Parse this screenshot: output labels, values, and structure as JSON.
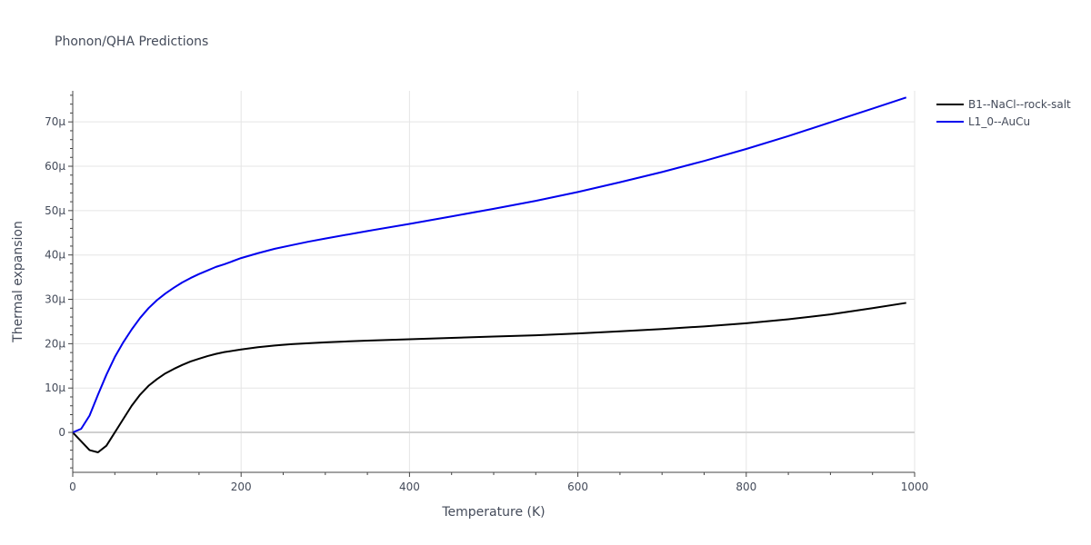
{
  "chart_data": {
    "type": "line",
    "title": "Phonon/QHA Predictions",
    "xlabel": "Temperature (K)",
    "ylabel": "Thermal expansion",
    "xlim": [
      0,
      1000
    ],
    "ylim": [
      -9,
      77
    ],
    "x_ticks": [
      0,
      200,
      400,
      600,
      800,
      1000
    ],
    "x_tick_labels": [
      "0",
      "200",
      "400",
      "600",
      "800",
      "1000"
    ],
    "y_ticks": [
      0,
      10,
      20,
      30,
      40,
      50,
      60,
      70
    ],
    "y_tick_labels": [
      "0",
      "10μ",
      "20μ",
      "30μ",
      "40μ",
      "50μ",
      "60μ",
      "70μ"
    ],
    "grid": true,
    "legend_position": "top-right",
    "series": [
      {
        "name": "B1--NaCl--rock-salt",
        "color": "#000000",
        "x": [
          0,
          10,
          20,
          30,
          40,
          50,
          60,
          70,
          80,
          90,
          100,
          110,
          120,
          130,
          140,
          150,
          160,
          170,
          180,
          200,
          220,
          240,
          260,
          280,
          300,
          350,
          400,
          450,
          500,
          550,
          600,
          650,
          700,
          750,
          800,
          850,
          900,
          950,
          990
        ],
        "values": [
          0,
          -2,
          -4,
          -4.5,
          -3,
          0,
          3,
          6,
          8.5,
          10.5,
          12,
          13.3,
          14.3,
          15.2,
          16,
          16.6,
          17.2,
          17.7,
          18.1,
          18.7,
          19.2,
          19.6,
          19.9,
          20.1,
          20.3,
          20.7,
          21,
          21.3,
          21.6,
          21.9,
          22.3,
          22.8,
          23.3,
          23.9,
          24.6,
          25.5,
          26.6,
          28,
          29.2
        ]
      },
      {
        "name": "L1_0--AuCu",
        "color": "#0000ee",
        "x": [
          0,
          10,
          20,
          30,
          40,
          50,
          60,
          70,
          80,
          90,
          100,
          110,
          120,
          130,
          140,
          150,
          160,
          170,
          180,
          200,
          220,
          240,
          260,
          280,
          300,
          350,
          400,
          450,
          500,
          550,
          600,
          650,
          700,
          750,
          800,
          850,
          900,
          950,
          990
        ],
        "values": [
          0,
          0.8,
          3.8,
          8.5,
          13,
          17,
          20.3,
          23.2,
          25.8,
          28,
          29.8,
          31.3,
          32.6,
          33.8,
          34.8,
          35.7,
          36.5,
          37.3,
          37.9,
          39.3,
          40.4,
          41.4,
          42.2,
          43,
          43.7,
          45.4,
          47,
          48.7,
          50.4,
          52.2,
          54.2,
          56.4,
          58.7,
          61.2,
          63.9,
          66.8,
          69.9,
          73,
          75.5
        ]
      }
    ]
  }
}
